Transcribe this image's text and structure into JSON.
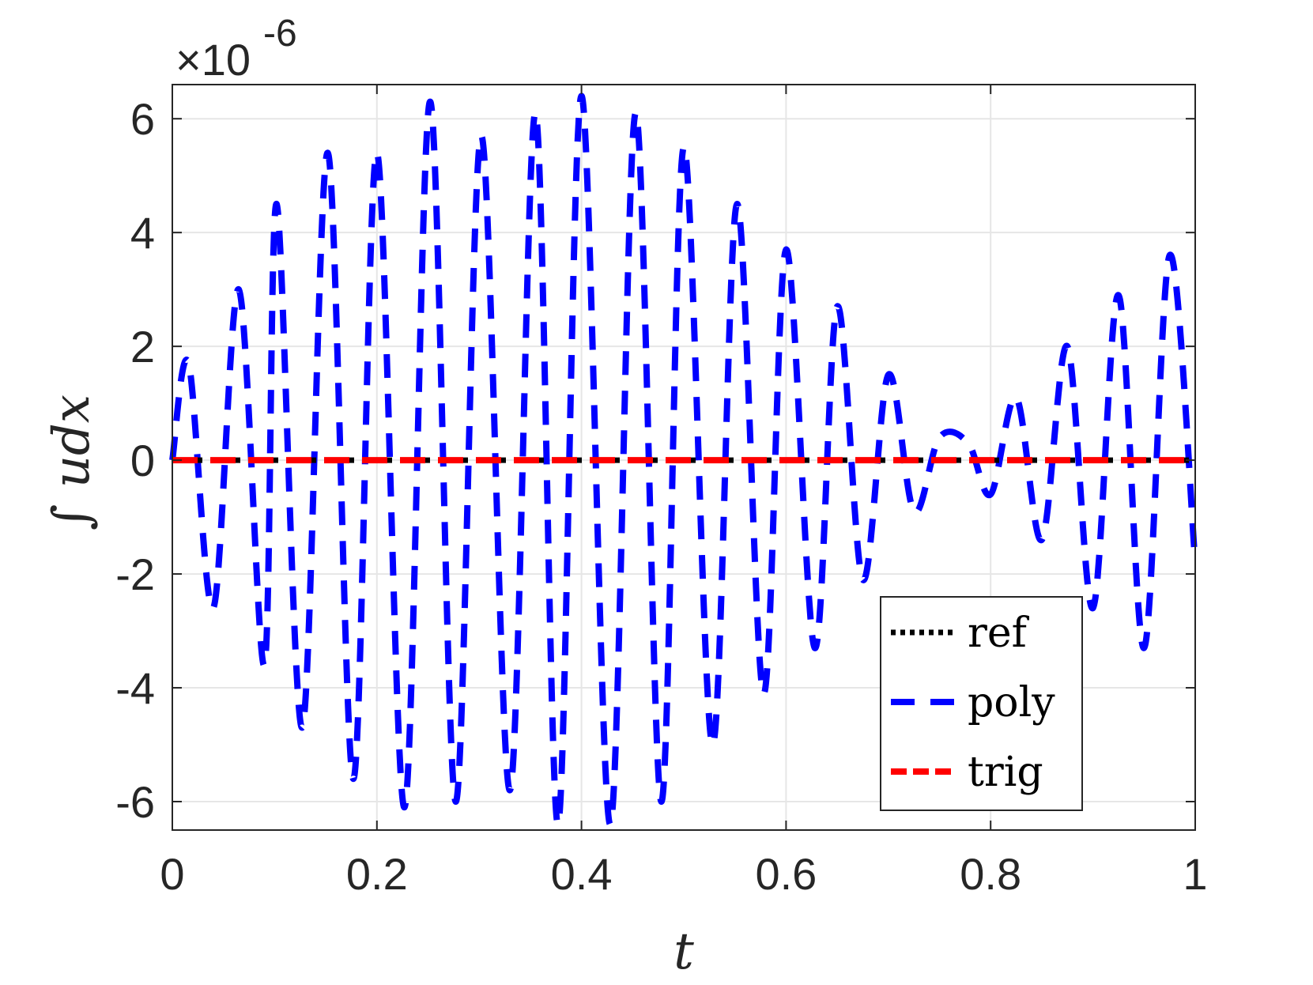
{
  "chart_data": {
    "type": "line",
    "xlabel": "t",
    "ylabel": "∫ udx",
    "xlim": [
      0,
      1
    ],
    "ylim": [
      -6.5,
      6.6
    ],
    "y_multiplier": "×10",
    "y_exponent": "-6",
    "xticks": [
      "0",
      "0.2",
      "0.4",
      "0.6",
      "0.8",
      "1"
    ],
    "yticks": [
      "-6",
      "-4",
      "-2",
      "0",
      "2",
      "4",
      "6"
    ],
    "grid": true,
    "legend_position": "bottom-right",
    "series": [
      {
        "name": "ref",
        "color": "#000000",
        "style": "dotted",
        "x": [
          0,
          1
        ],
        "y": [
          0,
          0
        ]
      },
      {
        "name": "poly",
        "color": "#0000ff",
        "style": "dashed",
        "x": [
          0.0,
          0.016,
          0.04,
          0.065,
          0.09,
          0.102,
          0.127,
          0.152,
          0.177,
          0.2,
          0.227,
          0.252,
          0.277,
          0.302,
          0.33,
          0.355,
          0.377,
          0.4,
          0.428,
          0.453,
          0.478,
          0.5,
          0.528,
          0.552,
          0.578,
          0.6,
          0.628,
          0.65,
          0.675,
          0.7,
          0.725,
          0.75,
          0.778,
          0.8,
          0.825,
          0.85,
          0.875,
          0.9,
          0.925,
          0.95,
          0.975,
          1.0
        ],
        "y": [
          0.0,
          1.7,
          -2.6,
          3.0,
          -3.6,
          4.5,
          -4.7,
          5.4,
          -5.6,
          5.4,
          -6.1,
          6.3,
          -6.0,
          5.7,
          -5.8,
          6.1,
          -6.4,
          6.4,
          -6.4,
          6.1,
          -6.0,
          5.5,
          -5.0,
          4.5,
          -4.1,
          3.7,
          -3.3,
          2.7,
          -2.1,
          1.5,
          -0.9,
          0.4,
          0.3,
          -0.6,
          1.1,
          -1.4,
          2.0,
          -2.6,
          2.9,
          -3.3,
          3.6,
          -1.8
        ]
      },
      {
        "name": "trig",
        "color": "#ff0000",
        "style": "dashed",
        "x": [
          0,
          1
        ],
        "y": [
          0,
          0
        ]
      }
    ]
  }
}
